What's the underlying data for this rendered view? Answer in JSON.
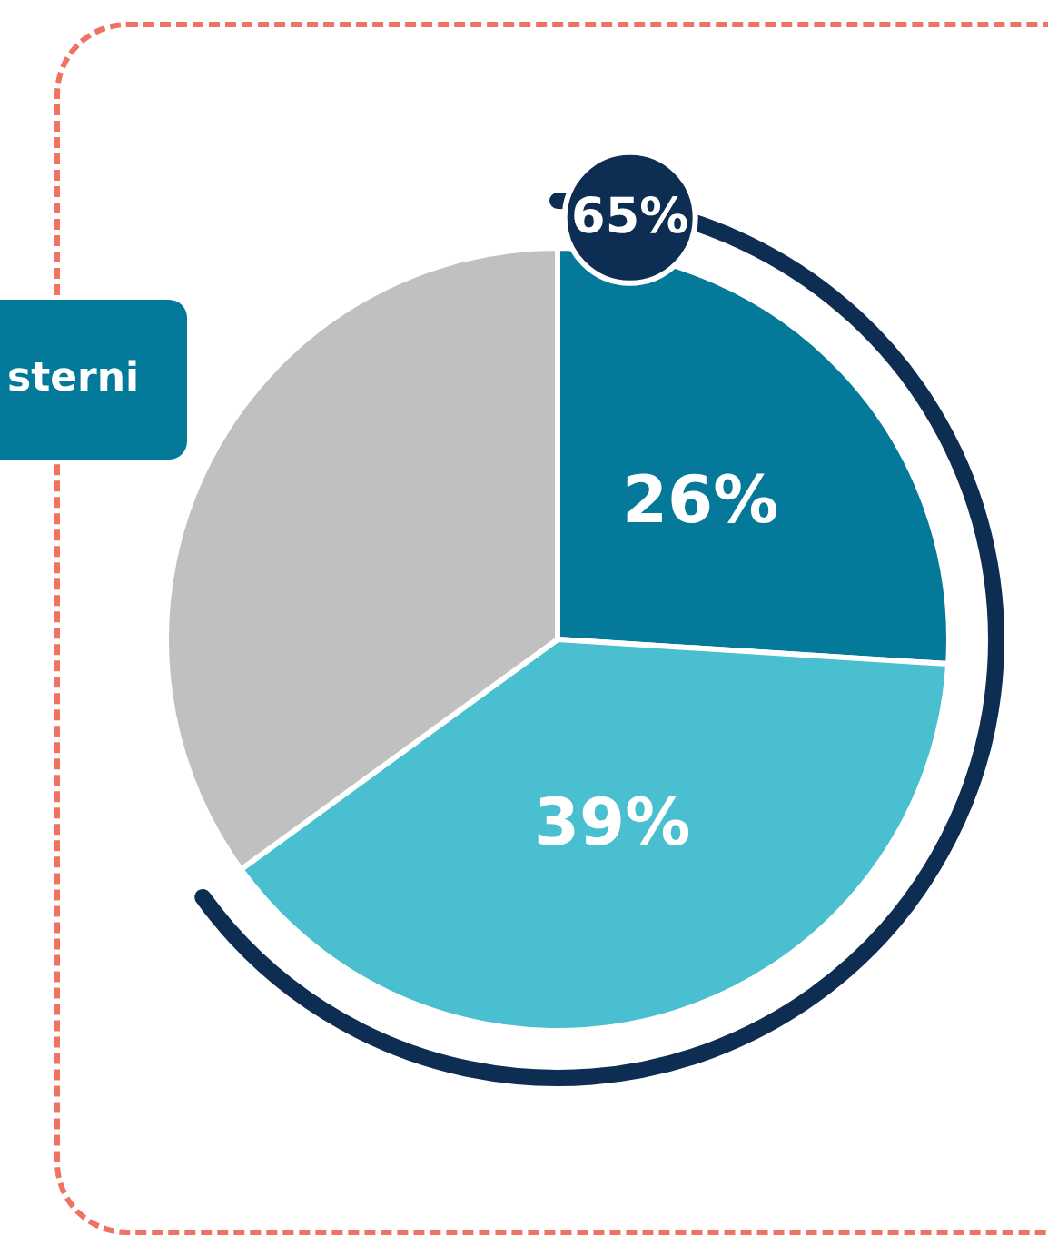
{
  "chart_data": {
    "type": "pie",
    "categories": [
      null,
      null,
      null
    ],
    "values": [
      26,
      39,
      35
    ],
    "colors": [
      "#04799a",
      "#4abfcf",
      "#c0c0c0"
    ],
    "value_labels": [
      "26%",
      "39%",
      null
    ],
    "annotations": [
      "65%",
      "sterni"
    ]
  }
}
